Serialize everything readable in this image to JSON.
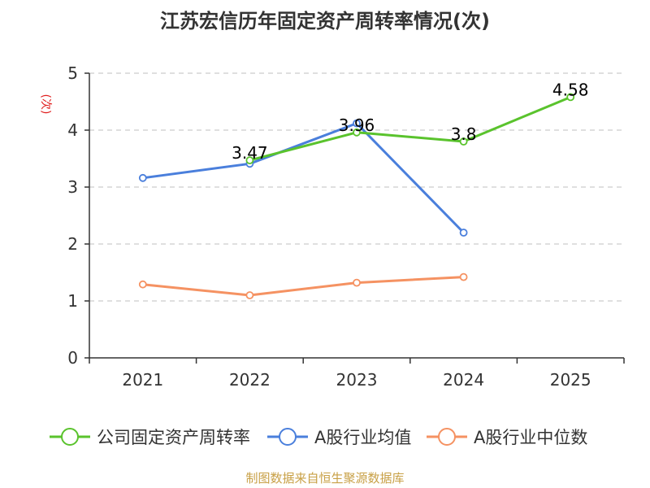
{
  "chart_data": {
    "type": "line",
    "title": "江苏宏信历年固定资产周转率情况(次)",
    "ylabel": "(次)",
    "xlabel": "",
    "categories": [
      "2021",
      "2022",
      "2023",
      "2024",
      "2025"
    ],
    "ylim": [
      0,
      5
    ],
    "yticks": [
      0,
      1,
      2,
      3,
      4,
      5
    ],
    "grid": true,
    "legend_position": "bottom",
    "series": [
      {
        "name": "公司固定资产周转率",
        "color": "#5ac32d",
        "values": [
          null,
          3.47,
          3.96,
          3.8,
          4.58
        ],
        "labels": [
          "",
          "3.47",
          "3.96",
          "3.8",
          "4.58"
        ]
      },
      {
        "name": "A股行业均值",
        "color": "#4a7fdc",
        "values": [
          3.16,
          3.41,
          4.12,
          2.2,
          null
        ]
      },
      {
        "name": "A股行业中位数",
        "color": "#f59262",
        "values": [
          1.29,
          1.1,
          1.32,
          1.42,
          null
        ]
      }
    ]
  },
  "source": "制图数据来自恒生聚源数据库"
}
